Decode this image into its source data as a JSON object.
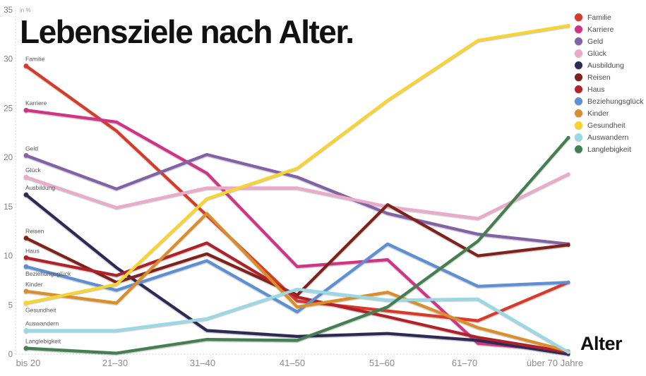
{
  "header": {
    "title": "Lebensziele nach Alter."
  },
  "axis": {
    "unit_label": "in %",
    "x_axis_label": "Alter",
    "y_ticks": [
      0,
      5,
      10,
      15,
      20,
      25,
      30,
      35
    ]
  },
  "chart_data": {
    "type": "line",
    "title": "Lebensziele nach Alter.",
    "unit": "%",
    "xlabel": "Alter",
    "ylabel": "in %",
    "ylim": [
      0,
      35
    ],
    "grid": "off",
    "legend_position": "top-right",
    "categories": [
      "bis 20",
      "21–30",
      "31–40",
      "41–50",
      "51–60",
      "61–70",
      "über 70 Jahre"
    ],
    "series": [
      {
        "name": "Familie",
        "color": "#d63a2c",
        "label_side": "above",
        "values": [
          29.3,
          22.7,
          14.1,
          5.4,
          4.4,
          3.4,
          7.3
        ]
      },
      {
        "name": "Karriere",
        "color": "#cf3484",
        "label_side": "above",
        "values": [
          24.8,
          23.6,
          18.4,
          8.9,
          9.6,
          1.1,
          0.3
        ]
      },
      {
        "name": "Geld",
        "color": "#8162a4",
        "label_side": "above",
        "values": [
          20.2,
          16.8,
          20.3,
          18.0,
          14.3,
          12.2,
          11.2
        ]
      },
      {
        "name": "Glück",
        "color": "#ecaacb",
        "label_side": "above",
        "values": [
          18.0,
          14.9,
          16.9,
          16.9,
          15.0,
          13.8,
          18.3
        ]
      },
      {
        "name": "Ausbildung",
        "color": "#2e2c55",
        "label_side": "above",
        "values": [
          16.2,
          8.8,
          2.4,
          1.8,
          2.1,
          1.4,
          0.0
        ]
      },
      {
        "name": "Reisen",
        "color": "#7e221d",
        "label_side": "above",
        "values": [
          11.8,
          7.3,
          10.2,
          6.0,
          15.2,
          10.0,
          11.1
        ]
      },
      {
        "name": "Haus",
        "color": "#b0232c",
        "label_side": "above",
        "values": [
          9.8,
          8.0,
          11.3,
          5.8,
          3.8,
          1.7,
          0.2
        ]
      },
      {
        "name": "Beziehungsglück",
        "color": "#5d8fd3",
        "label_side": "below",
        "values": [
          8.9,
          6.5,
          9.5,
          4.3,
          11.2,
          6.9,
          7.3
        ]
      },
      {
        "name": "Kinder",
        "color": "#d98e2b",
        "label_side": "above",
        "values": [
          6.4,
          5.2,
          14.3,
          4.8,
          6.3,
          2.7,
          0.3
        ]
      },
      {
        "name": "Gesundheit",
        "color": "#f8d52e",
        "label_side": "below",
        "values": [
          5.2,
          7.1,
          15.8,
          18.9,
          25.8,
          31.9,
          33.4
        ]
      },
      {
        "name": "Auswandern",
        "color": "#98d9e4",
        "label_side": "above",
        "values": [
          2.4,
          2.4,
          3.6,
          6.6,
          5.5,
          5.6,
          0.2
        ]
      },
      {
        "name": "Langlebigkeit",
        "color": "#457f51",
        "label_side": "above",
        "values": [
          0.6,
          0.1,
          1.5,
          1.4,
          4.8,
          11.5,
          22.0
        ]
      }
    ]
  }
}
